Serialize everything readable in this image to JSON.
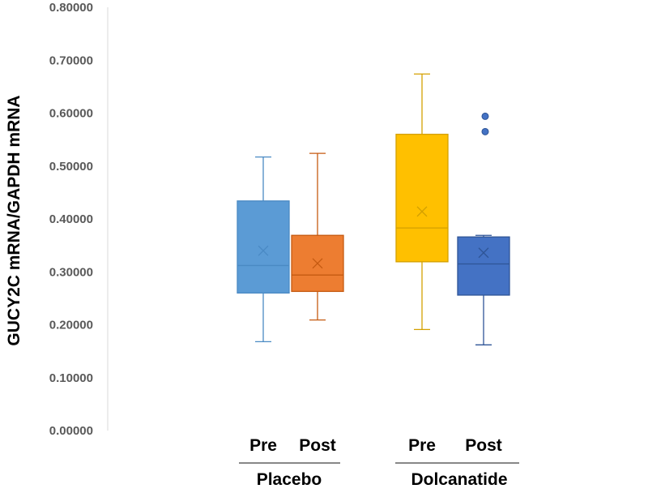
{
  "chart_data": {
    "type": "box",
    "title": "",
    "xlabel": "",
    "ylabel": "GUCY2C mRNA/GAPDH mRNA",
    "ylim": [
      0,
      0.8
    ],
    "ytick_labels": [
      "0.00000",
      "0.10000",
      "0.20000",
      "0.30000",
      "0.40000",
      "0.50000",
      "0.60000",
      "0.70000",
      "0.80000"
    ],
    "grid": false,
    "groups": [
      {
        "name": "Placebo",
        "series": [
          {
            "name": "Pre",
            "color": "#5B9BD5",
            "stroke": "#4A8AC4",
            "min": 0.168,
            "q1": 0.26,
            "median": 0.312,
            "q3": 0.434,
            "max": 0.517,
            "mean": 0.34,
            "outliers": []
          },
          {
            "name": "Post",
            "color": "#ED7D31",
            "stroke": "#C55A11",
            "min": 0.209,
            "q1": 0.263,
            "median": 0.294,
            "q3": 0.369,
            "max": 0.524,
            "mean": 0.316,
            "outliers": []
          }
        ]
      },
      {
        "name": "Dolcanatide",
        "series": [
          {
            "name": "Pre",
            "color": "#FFC000",
            "stroke": "#D4A000",
            "min": 0.191,
            "q1": 0.319,
            "median": 0.383,
            "q3": 0.56,
            "max": 0.674,
            "mean": 0.414,
            "outliers": []
          },
          {
            "name": "Post",
            "color": "#4472C4",
            "stroke": "#2F5597",
            "min": 0.162,
            "q1": 0.256,
            "median": 0.315,
            "q3": 0.366,
            "max": 0.369,
            "mean": 0.336,
            "outliers": [
              0.565,
              0.594
            ]
          }
        ]
      }
    ]
  }
}
